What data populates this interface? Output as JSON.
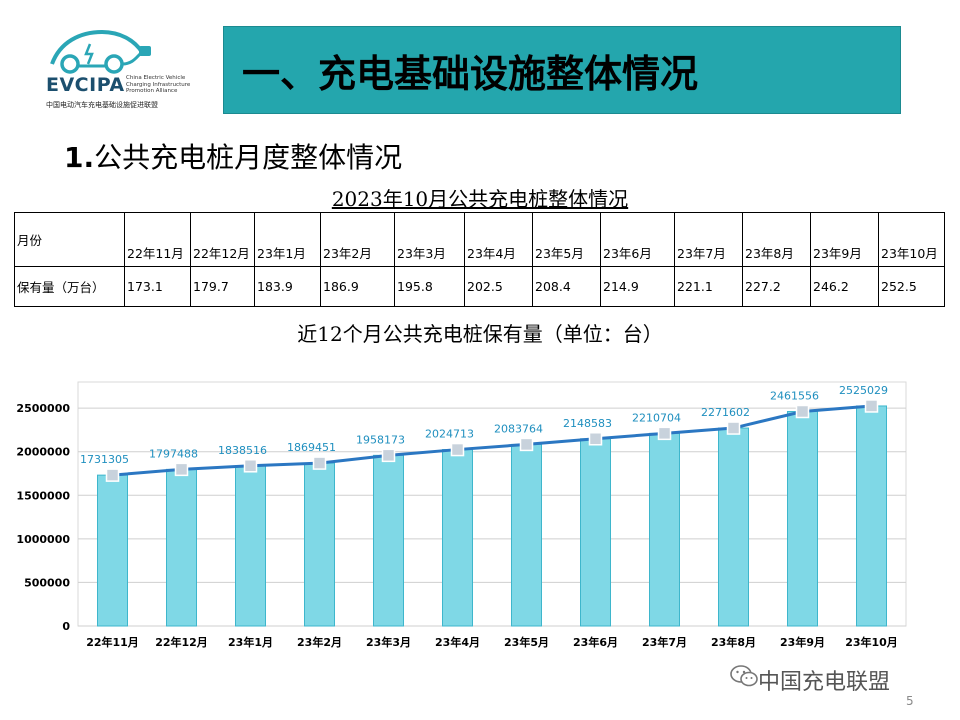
{
  "logo": {
    "brand": "EVCIPA",
    "english": "China Electric Vehicle\nCharging Infrastructure\nPromotion Alliance",
    "chinese": "中国电动汽车充电基础设施促进联盟"
  },
  "header": {
    "title": "一、充电基础设施整体情况"
  },
  "section": {
    "number": "1.",
    "title": "公共充电桩月度整体情况"
  },
  "table": {
    "title": "2023年10月公共充电桩整体情况",
    "row_header_month": "月份",
    "row_header_value": "保有量（万台）",
    "months": [
      "22年11月",
      "22年12月",
      "23年1月",
      "23年2月",
      "23年3月",
      "23年4月",
      "23年5月",
      "23年6月",
      "23年7月",
      "23年8月",
      "23年9月",
      "23年10月"
    ],
    "values": [
      "173.1",
      "179.7",
      "183.9",
      "186.9",
      "195.8",
      "202.5",
      "208.4",
      "214.9",
      "221.1",
      "227.2",
      "246.2",
      "252.5"
    ]
  },
  "chart_title": "近12个月公共充电桩保有量（单位：台）",
  "chart_data": {
    "type": "bar",
    "categories": [
      "22年11月",
      "22年12月",
      "23年1月",
      "23年2月",
      "23年3月",
      "23年4月",
      "23年5月",
      "23年6月",
      "23年7月",
      "23年8月",
      "23年9月",
      "23年10月"
    ],
    "series": [
      {
        "type": "bar",
        "values": [
          1731305,
          1797488,
          1838516,
          1869451,
          1958173,
          2024713,
          2083764,
          2148583,
          2210704,
          2271602,
          2461556,
          2525029
        ]
      },
      {
        "type": "line",
        "values": [
          1731305,
          1797488,
          1838516,
          1869451,
          1958173,
          2024713,
          2083764,
          2148583,
          2210704,
          2271602,
          2461556,
          2525029
        ]
      }
    ],
    "data_labels": [
      "1731305",
      "1797488",
      "1838516",
      "1869451",
      "1958173",
      "2024713",
      "2083764",
      "2148583",
      "2210704",
      "2271602",
      "2461556",
      "2525029"
    ],
    "yticks": [
      "0",
      "500000",
      "1000000",
      "1500000",
      "2000000",
      "2500000"
    ],
    "ylim": [
      0,
      2800000
    ],
    "grid": true,
    "colors": {
      "bar": "#7fd8e6",
      "bar_edge": "#3eb6cc",
      "line": "#2b77c2",
      "marker": "#c8d2dc",
      "label": "#1f8fbf"
    }
  },
  "watermark": {
    "text": "中国充电联盟"
  },
  "page_number": "5"
}
